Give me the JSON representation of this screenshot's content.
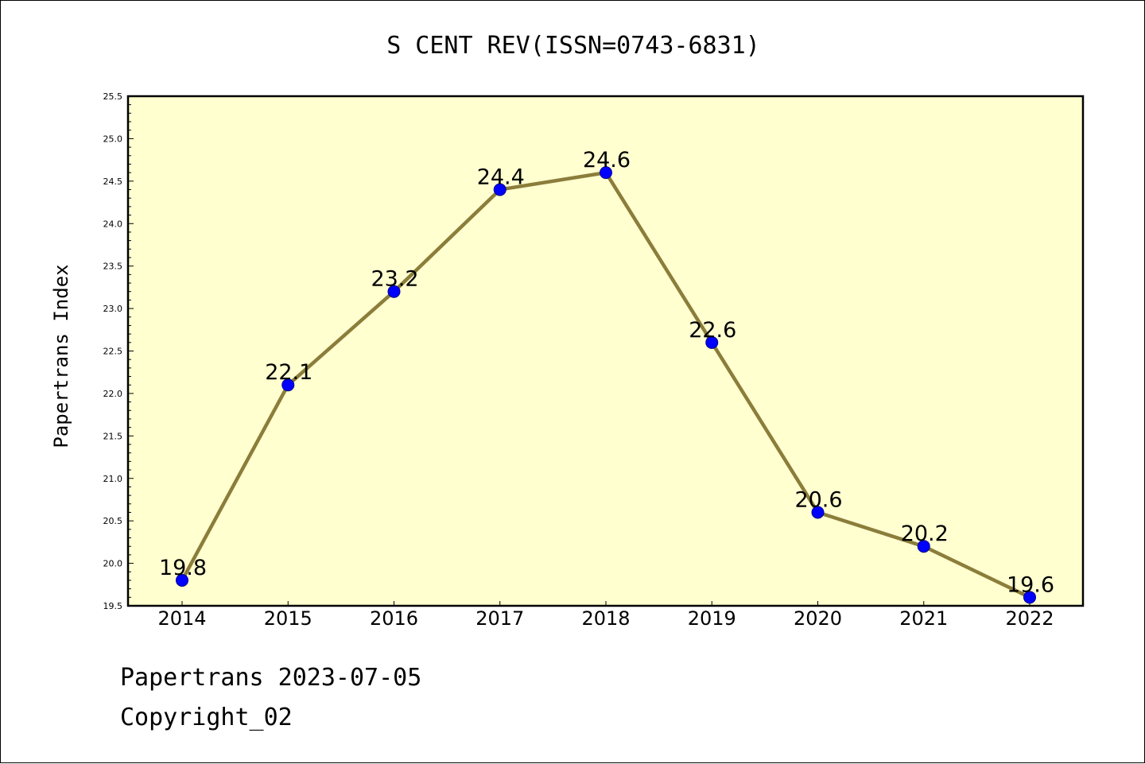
{
  "chart_data": {
    "type": "line",
    "title": "S CENT REV(ISSN=0743-6831)",
    "xlabel": "",
    "ylabel": "Papertrans Index",
    "categories": [
      "2014",
      "2015",
      "2016",
      "2017",
      "2018",
      "2019",
      "2020",
      "2021",
      "2022"
    ],
    "series": [
      {
        "values": [
          19.8,
          22.1,
          23.2,
          24.4,
          24.6,
          22.6,
          20.6,
          20.2,
          19.6
        ]
      }
    ],
    "data_labels": [
      "19.8",
      "22.1",
      "23.2",
      "24.4",
      "24.6",
      "22.6",
      "20.6",
      "20.2",
      "19.6"
    ],
    "ylim": [
      19.5,
      25.5
    ],
    "yticks": [
      "19.5",
      "20.0",
      "20.5",
      "21.0",
      "21.5",
      "22.0",
      "22.5",
      "23.0",
      "23.5",
      "24.0",
      "24.5",
      "25.0",
      "25.5"
    ],
    "grid": false,
    "colors": {
      "plot_background": "#FFFFD0",
      "line": "#8B7D3A",
      "marker": "#0000FF",
      "marker_edge": "#00008B"
    }
  },
  "footer": {
    "line1": "Papertrans 2023-07-05",
    "line2": "Copyright_02"
  }
}
